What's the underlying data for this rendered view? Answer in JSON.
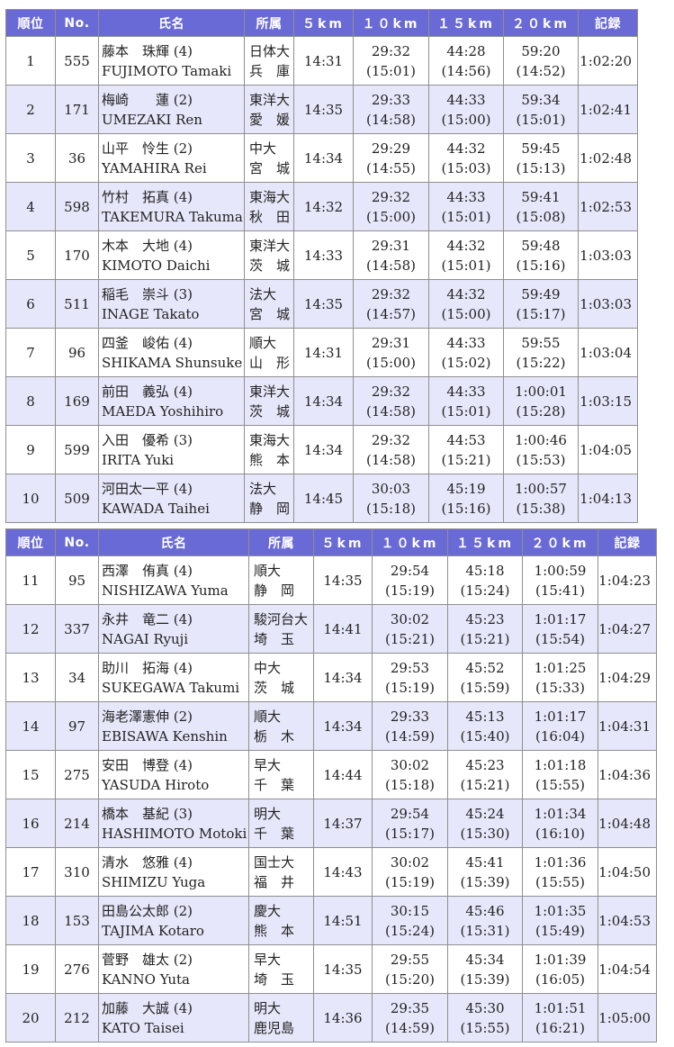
{
  "headers": {
    "rank": "順位",
    "no": "No.",
    "name": "氏名",
    "affil": "所属",
    "km5": "５km",
    "km10": "１０km",
    "km15": "１５km",
    "km20": "２０km",
    "record": "記録"
  },
  "table1": [
    {
      "rank": "1",
      "no": "555",
      "name_ja": "藤本　珠輝 (4)",
      "name_en": "FUJIMOTO Tamaki",
      "univ": "日体大",
      "pref": "兵　庫",
      "km5": "14:31",
      "km10": "29:32",
      "km10_split": "(15:01)",
      "km15": "44:28",
      "km15_split": "(14:56)",
      "km20": "59:20",
      "km20_split": "(14:52)",
      "record": "1:02:20"
    },
    {
      "rank": "2",
      "no": "171",
      "name_ja": "梅崎　　蓮 (2)",
      "name_en": "UMEZAKI Ren",
      "univ": "東洋大",
      "pref": "愛　媛",
      "km5": "14:35",
      "km10": "29:33",
      "km10_split": "(14:58)",
      "km15": "44:33",
      "km15_split": "(15:00)",
      "km20": "59:34",
      "km20_split": "(15:01)",
      "record": "1:02:41"
    },
    {
      "rank": "3",
      "no": "36",
      "name_ja": "山平　怜生 (2)",
      "name_en": "YAMAHIRA Rei",
      "univ": "中大",
      "pref": "宮　城",
      "km5": "14:34",
      "km10": "29:29",
      "km10_split": "(14:55)",
      "km15": "44:32",
      "km15_split": "(15:03)",
      "km20": "59:45",
      "km20_split": "(15:13)",
      "record": "1:02:48"
    },
    {
      "rank": "4",
      "no": "598",
      "name_ja": "竹村　拓真 (4)",
      "name_en": "TAKEMURA Takuma",
      "univ": "東海大",
      "pref": "秋　田",
      "km5": "14:32",
      "km10": "29:32",
      "km10_split": "(15:00)",
      "km15": "44:33",
      "km15_split": "(15:01)",
      "km20": "59:41",
      "km20_split": "(15:08)",
      "record": "1:02:53"
    },
    {
      "rank": "5",
      "no": "170",
      "name_ja": "木本　大地 (4)",
      "name_en": "KIMOTO Daichi",
      "univ": "東洋大",
      "pref": "茨　城",
      "km5": "14:33",
      "km10": "29:31",
      "km10_split": "(14:58)",
      "km15": "44:32",
      "km15_split": "(15:01)",
      "km20": "59:48",
      "km20_split": "(15:16)",
      "record": "1:03:03"
    },
    {
      "rank": "6",
      "no": "511",
      "name_ja": "稲毛　崇斗 (3)",
      "name_en": "INAGE Takato",
      "univ": "法大",
      "pref": "宮　城",
      "km5": "14:35",
      "km10": "29:32",
      "km10_split": "(14:57)",
      "km15": "44:32",
      "km15_split": "(15:00)",
      "km20": "59:49",
      "km20_split": "(15:17)",
      "record": "1:03:03"
    },
    {
      "rank": "7",
      "no": "96",
      "name_ja": "四釜　峻佑 (4)",
      "name_en": "SHIKAMA Shunsuke",
      "univ": "順大",
      "pref": "山　形",
      "km5": "14:31",
      "km10": "29:31",
      "km10_split": "(15:00)",
      "km15": "44:33",
      "km15_split": "(15:02)",
      "km20": "59:55",
      "km20_split": "(15:22)",
      "record": "1:03:04"
    },
    {
      "rank": "8",
      "no": "169",
      "name_ja": "前田　義弘 (4)",
      "name_en": "MAEDA Yoshihiro",
      "univ": "東洋大",
      "pref": "茨　城",
      "km5": "14:34",
      "km10": "29:32",
      "km10_split": "(14:58)",
      "km15": "44:33",
      "km15_split": "(15:01)",
      "km20": "1:00:01",
      "km20_split": "(15:28)",
      "record": "1:03:15"
    },
    {
      "rank": "9",
      "no": "599",
      "name_ja": "入田　優希 (3)",
      "name_en": "IRITA Yuki",
      "univ": "東海大",
      "pref": "熊　本",
      "km5": "14:34",
      "km10": "29:32",
      "km10_split": "(14:58)",
      "km15": "44:53",
      "km15_split": "(15:21)",
      "km20": "1:00:46",
      "km20_split": "(15:53)",
      "record": "1:04:05"
    },
    {
      "rank": "10",
      "no": "509",
      "name_ja": "河田太一平 (4)",
      "name_en": "KAWADA Taihei",
      "univ": "法大",
      "pref": "静　岡",
      "km5": "14:45",
      "km10": "30:03",
      "km10_split": "(15:18)",
      "km15": "45:19",
      "km15_split": "(15:16)",
      "km20": "1:00:57",
      "km20_split": "(15:38)",
      "record": "1:04:13"
    }
  ],
  "table2": [
    {
      "rank": "11",
      "no": "95",
      "name_ja": "西澤　侑真 (4)",
      "name_en": "NISHIZAWA Yuma",
      "univ": "順大",
      "pref": "静　岡",
      "km5": "14:35",
      "km10": "29:54",
      "km10_split": "(15:19)",
      "km15": "45:18",
      "km15_split": "(15:24)",
      "km20": "1:00:59",
      "km20_split": "(15:41)",
      "record": "1:04:23"
    },
    {
      "rank": "12",
      "no": "337",
      "name_ja": "永井　竜二 (4)",
      "name_en": "NAGAI Ryuji",
      "univ": "駿河台大",
      "pref": "埼　玉",
      "km5": "14:41",
      "km10": "30:02",
      "km10_split": "(15:21)",
      "km15": "45:23",
      "km15_split": "(15:21)",
      "km20": "1:01:17",
      "km20_split": "(15:54)",
      "record": "1:04:27"
    },
    {
      "rank": "13",
      "no": "34",
      "name_ja": "助川　拓海 (4)",
      "name_en": "SUKEGAWA Takumi",
      "univ": "中大",
      "pref": "茨　城",
      "km5": "14:34",
      "km10": "29:53",
      "km10_split": "(15:19)",
      "km15": "45:52",
      "km15_split": "(15:59)",
      "km20": "1:01:25",
      "km20_split": "(15:33)",
      "record": "1:04:29"
    },
    {
      "rank": "14",
      "no": "97",
      "name_ja": "海老澤憲伸 (2)",
      "name_en": "EBISAWA Kenshin",
      "univ": "順大",
      "pref": "栃　木",
      "km5": "14:34",
      "km10": "29:33",
      "km10_split": "(14:59)",
      "km15": "45:13",
      "km15_split": "(15:40)",
      "km20": "1:01:17",
      "km20_split": "(16:04)",
      "record": "1:04:31"
    },
    {
      "rank": "15",
      "no": "275",
      "name_ja": "安田　博登 (4)",
      "name_en": "YASUDA Hiroto",
      "univ": "早大",
      "pref": "千　葉",
      "km5": "14:44",
      "km10": "30:02",
      "km10_split": "(15:18)",
      "km15": "45:23",
      "km15_split": "(15:21)",
      "km20": "1:01:18",
      "km20_split": "(15:55)",
      "record": "1:04:36"
    },
    {
      "rank": "16",
      "no": "214",
      "name_ja": "橋本　基紀 (3)",
      "name_en": "HASHIMOTO Motoki",
      "univ": "明大",
      "pref": "千　葉",
      "km5": "14:37",
      "km10": "29:54",
      "km10_split": "(15:17)",
      "km15": "45:24",
      "km15_split": "(15:30)",
      "km20": "1:01:34",
      "km20_split": "(16:10)",
      "record": "1:04:48"
    },
    {
      "rank": "17",
      "no": "310",
      "name_ja": "清水　悠雅 (4)",
      "name_en": "SHIMIZU Yuga",
      "univ": "国士大",
      "pref": "福　井",
      "km5": "14:43",
      "km10": "30:02",
      "km10_split": "(15:19)",
      "km15": "45:41",
      "km15_split": "(15:39)",
      "km20": "1:01:36",
      "km20_split": "(15:55)",
      "record": "1:04:50"
    },
    {
      "rank": "18",
      "no": "153",
      "name_ja": "田島公太郎 (2)",
      "name_en": "TAJIMA Kotaro",
      "univ": "慶大",
      "pref": "熊　本",
      "km5": "14:51",
      "km10": "30:15",
      "km10_split": "(15:24)",
      "km15": "45:46",
      "km15_split": "(15:31)",
      "km20": "1:01:35",
      "km20_split": "(15:49)",
      "record": "1:04:53"
    },
    {
      "rank": "19",
      "no": "276",
      "name_ja": "菅野　雄太 (2)",
      "name_en": "KANNO Yuta",
      "univ": "早大",
      "pref": "埼　玉",
      "km5": "14:35",
      "km10": "29:55",
      "km10_split": "(15:20)",
      "km15": "45:34",
      "km15_split": "(15:39)",
      "km20": "1:01:39",
      "km20_split": "(16:05)",
      "record": "1:04:54"
    },
    {
      "rank": "20",
      "no": "212",
      "name_ja": "加藤　大誠 (4)",
      "name_en": "KATO Taisei",
      "univ": "明大",
      "pref": "鹿児島",
      "km5": "14:36",
      "km10": "29:35",
      "km10_split": "(14:59)",
      "km15": "45:30",
      "km15_split": "(15:55)",
      "km20": "1:01:51",
      "km20_split": "(16:21)",
      "record": "1:05:00"
    }
  ]
}
